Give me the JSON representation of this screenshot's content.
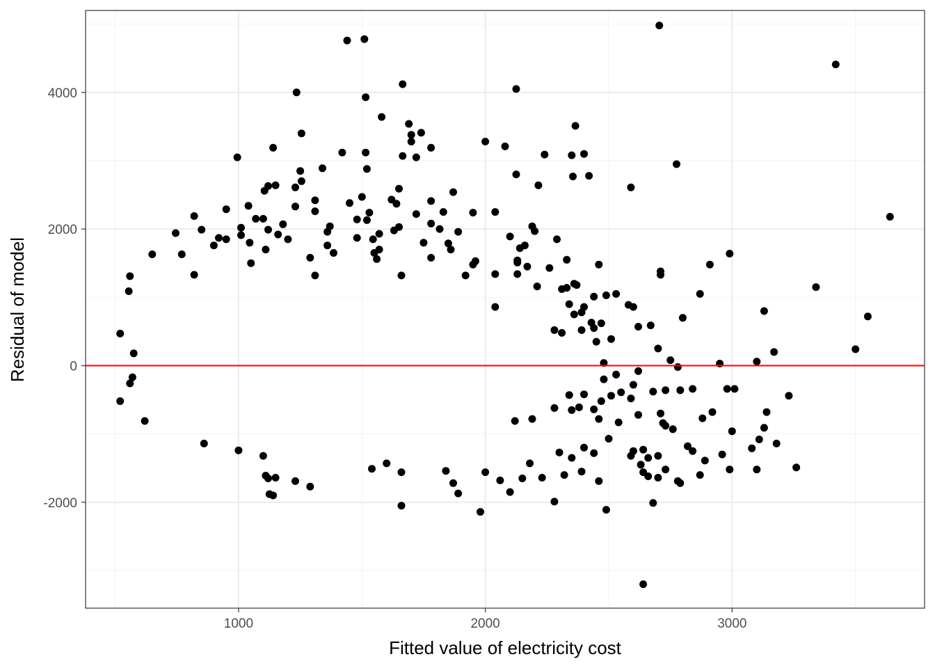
{
  "chart_data": {
    "type": "scatter",
    "title": "",
    "xlabel": "Fitted value of electricity cost",
    "ylabel": "Residual of model",
    "xlim": [
      380,
      3780
    ],
    "ylim": [
      -3550,
      5200
    ],
    "x_ticks": [
      1000,
      2000,
      3000
    ],
    "x_tick_labels": [
      "1000",
      "2000",
      "3000"
    ],
    "y_ticks": [
      -2000,
      0,
      2000,
      4000
    ],
    "y_tick_labels": [
      "-2000",
      "0",
      "2000",
      "4000"
    ],
    "grid": true,
    "legend": "none",
    "reference_line": {
      "y": 0,
      "color": "#ff0000"
    },
    "point_color": "#000000",
    "series": [
      {
        "points": [
          [
            2705,
            4980
          ],
          [
            1440,
            4760
          ],
          [
            1510,
            4780
          ],
          [
            3420,
            4410
          ],
          [
            1665,
            4120
          ],
          [
            2125,
            4050
          ],
          [
            1235,
            4000
          ],
          [
            1515,
            3930
          ],
          [
            1580,
            3640
          ],
          [
            1690,
            3540
          ],
          [
            2365,
            3510
          ],
          [
            1255,
            3400
          ],
          [
            1740,
            3410
          ],
          [
            1700,
            3380
          ],
          [
            2000,
            3280
          ],
          [
            2080,
            3210
          ],
          [
            1140,
            3190
          ],
          [
            1780,
            3190
          ],
          [
            1700,
            3280
          ],
          [
            1420,
            3120
          ],
          [
            1515,
            3120
          ],
          [
            2240,
            3090
          ],
          [
            2350,
            3080
          ],
          [
            2400,
            3100
          ],
          [
            995,
            3050
          ],
          [
            1665,
            3070
          ],
          [
            1720,
            3050
          ],
          [
            2775,
            2950
          ],
          [
            1340,
            2890
          ],
          [
            1520,
            2880
          ],
          [
            1250,
            2850
          ],
          [
            2355,
            2770
          ],
          [
            2420,
            2780
          ],
          [
            1255,
            2700
          ],
          [
            2125,
            2800
          ],
          [
            2590,
            2610
          ],
          [
            2215,
            2640
          ],
          [
            1120,
            2630
          ],
          [
            1150,
            2640
          ],
          [
            1230,
            2610
          ],
          [
            1650,
            2590
          ],
          [
            1105,
            2560
          ],
          [
            1870,
            2540
          ],
          [
            1500,
            2470
          ],
          [
            1620,
            2430
          ],
          [
            1310,
            2420
          ],
          [
            1450,
            2380
          ],
          [
            1640,
            2370
          ],
          [
            1780,
            2410
          ],
          [
            1040,
            2340
          ],
          [
            1230,
            2330
          ],
          [
            950,
            2290
          ],
          [
            1310,
            2260
          ],
          [
            1530,
            2240
          ],
          [
            1720,
            2220
          ],
          [
            1830,
            2250
          ],
          [
            1950,
            2240
          ],
          [
            2040,
            2250
          ],
          [
            3640,
            2180
          ],
          [
            820,
            2190
          ],
          [
            1070,
            2150
          ],
          [
            1100,
            2150
          ],
          [
            1520,
            2130
          ],
          [
            1480,
            2140
          ],
          [
            1570,
            1930
          ],
          [
            2190,
            2040
          ],
          [
            1010,
            2020
          ],
          [
            1180,
            2070
          ],
          [
            1370,
            2040
          ],
          [
            1650,
            2030
          ],
          [
            1780,
            2080
          ],
          [
            1815,
            2000
          ],
          [
            1120,
            1990
          ],
          [
            1160,
            1920
          ],
          [
            850,
            1990
          ],
          [
            1360,
            1960
          ],
          [
            1630,
            1980
          ],
          [
            2200,
            1970
          ],
          [
            1890,
            1960
          ],
          [
            745,
            1940
          ],
          [
            1010,
            1910
          ],
          [
            920,
            1870
          ],
          [
            950,
            1850
          ],
          [
            1480,
            1870
          ],
          [
            2100,
            1890
          ],
          [
            2290,
            1850
          ],
          [
            1200,
            1850
          ],
          [
            1545,
            1850
          ],
          [
            1045,
            1800
          ],
          [
            1750,
            1800
          ],
          [
            1850,
            1790
          ],
          [
            2160,
            1760
          ],
          [
            2140,
            1720
          ],
          [
            900,
            1760
          ],
          [
            1360,
            1760
          ],
          [
            1570,
            1700
          ],
          [
            1110,
            1700
          ],
          [
            1860,
            1700
          ],
          [
            2990,
            1640
          ],
          [
            1385,
            1650
          ],
          [
            1550,
            1650
          ],
          [
            650,
            1630
          ],
          [
            770,
            1630
          ],
          [
            1290,
            1580
          ],
          [
            1560,
            1560
          ],
          [
            1780,
            1580
          ],
          [
            2130,
            1540
          ],
          [
            2330,
            1550
          ],
          [
            2910,
            1480
          ],
          [
            2460,
            1480
          ],
          [
            2130,
            1510
          ],
          [
            1050,
            1500
          ],
          [
            1960,
            1530
          ],
          [
            1950,
            1480
          ],
          [
            2170,
            1450
          ],
          [
            2260,
            1430
          ],
          [
            2710,
            1380
          ],
          [
            2710,
            1330
          ],
          [
            2040,
            1340
          ],
          [
            2130,
            1340
          ],
          [
            1310,
            1320
          ],
          [
            560,
            1310
          ],
          [
            820,
            1330
          ],
          [
            1660,
            1320
          ],
          [
            1920,
            1320
          ],
          [
            2360,
            1200
          ],
          [
            2370,
            1180
          ],
          [
            2210,
            1160
          ],
          [
            2330,
            1140
          ],
          [
            3340,
            1150
          ],
          [
            2310,
            1120
          ],
          [
            2530,
            1050
          ],
          [
            2870,
            1050
          ],
          [
            555,
            1090
          ],
          [
            2490,
            1030
          ],
          [
            2440,
            1010
          ],
          [
            2580,
            890
          ],
          [
            2600,
            860
          ],
          [
            2340,
            900
          ],
          [
            2400,
            860
          ],
          [
            3130,
            800
          ],
          [
            2390,
            780
          ],
          [
            2360,
            750
          ],
          [
            2040,
            860
          ],
          [
            3550,
            720
          ],
          [
            2800,
            700
          ],
          [
            2470,
            620
          ],
          [
            2430,
            630
          ],
          [
            2620,
            570
          ],
          [
            2670,
            590
          ],
          [
            2440,
            550
          ],
          [
            2390,
            520
          ],
          [
            2280,
            520
          ],
          [
            2310,
            480
          ],
          [
            2510,
            390
          ],
          [
            2450,
            350
          ],
          [
            520,
            470
          ],
          [
            3500,
            240
          ],
          [
            2700,
            250
          ],
          [
            2750,
            80
          ],
          [
            3100,
            60
          ],
          [
            3170,
            200
          ],
          [
            2950,
            30
          ],
          [
            2480,
            40
          ],
          [
            2780,
            -20
          ],
          [
            2620,
            -80
          ],
          [
            2530,
            -130
          ],
          [
            2480,
            -200
          ],
          [
            2600,
            -280
          ],
          [
            2730,
            -360
          ],
          [
            2680,
            -380
          ],
          [
            2550,
            -390
          ],
          [
            2400,
            -420
          ],
          [
            2340,
            -430
          ],
          [
            2510,
            -440
          ],
          [
            2590,
            -480
          ],
          [
            2470,
            -520
          ],
          [
            2980,
            -340
          ],
          [
            3010,
            -340
          ],
          [
            2840,
            -340
          ],
          [
            2790,
            -360
          ],
          [
            3230,
            -440
          ],
          [
            3140,
            -680
          ],
          [
            2710,
            -700
          ],
          [
            2620,
            -720
          ],
          [
            2440,
            -640
          ],
          [
            2380,
            -610
          ],
          [
            2350,
            -650
          ],
          [
            2280,
            -620
          ],
          [
            2460,
            -780
          ],
          [
            2540,
            -830
          ],
          [
            2190,
            -780
          ],
          [
            2120,
            -810
          ],
          [
            2720,
            -840
          ],
          [
            2730,
            -880
          ],
          [
            2760,
            -930
          ],
          [
            2920,
            -680
          ],
          [
            2880,
            -770
          ],
          [
            3000,
            -960
          ],
          [
            3110,
            -1080
          ],
          [
            3130,
            -910
          ],
          [
            3080,
            -1210
          ],
          [
            3100,
            -1520
          ],
          [
            3180,
            -1140
          ],
          [
            3260,
            -1490
          ],
          [
            2960,
            -1300
          ],
          [
            2990,
            -1520
          ],
          [
            2890,
            -1390
          ],
          [
            2820,
            -1180
          ],
          [
            2840,
            -1250
          ],
          [
            2700,
            -1320
          ],
          [
            2660,
            -1350
          ],
          [
            2630,
            -1450
          ],
          [
            2640,
            -1560
          ],
          [
            2660,
            -1620
          ],
          [
            2700,
            -1640
          ],
          [
            2780,
            -1690
          ],
          [
            2790,
            -1720
          ],
          [
            2870,
            -1600
          ],
          [
            2730,
            -1520
          ],
          [
            2640,
            -1230
          ],
          [
            2590,
            -1320
          ],
          [
            2600,
            -1250
          ],
          [
            2500,
            -1070
          ],
          [
            2460,
            -1690
          ],
          [
            2390,
            -1550
          ],
          [
            2320,
            -1600
          ],
          [
            2280,
            -1990
          ],
          [
            2230,
            -1640
          ],
          [
            2180,
            -1430
          ],
          [
            2300,
            -1270
          ],
          [
            2350,
            -1350
          ],
          [
            2400,
            -1200
          ],
          [
            2440,
            -1280
          ],
          [
            2100,
            -1850
          ],
          [
            2060,
            -1680
          ],
          [
            2150,
            -1650
          ],
          [
            2000,
            -1560
          ],
          [
            1980,
            -2140
          ],
          [
            2680,
            -2010
          ],
          [
            2640,
            -3200
          ],
          [
            2490,
            -2110
          ],
          [
            1890,
            -1870
          ],
          [
            1870,
            -1720
          ],
          [
            1660,
            -2050
          ],
          [
            1840,
            -1540
          ],
          [
            1660,
            -1560
          ],
          [
            1600,
            -1430
          ],
          [
            1540,
            -1510
          ],
          [
            1230,
            -1690
          ],
          [
            1290,
            -1770
          ],
          [
            1140,
            -1900
          ],
          [
            1125,
            -1880
          ],
          [
            1150,
            -1640
          ],
          [
            1110,
            -1610
          ],
          [
            1120,
            -1650
          ],
          [
            1000,
            -1240
          ],
          [
            1100,
            -1320
          ],
          [
            860,
            -1140
          ],
          [
            620,
            -810
          ],
          [
            520,
            -520
          ],
          [
            560,
            -260
          ],
          [
            570,
            -170
          ],
          [
            575,
            180
          ]
        ]
      }
    ]
  }
}
